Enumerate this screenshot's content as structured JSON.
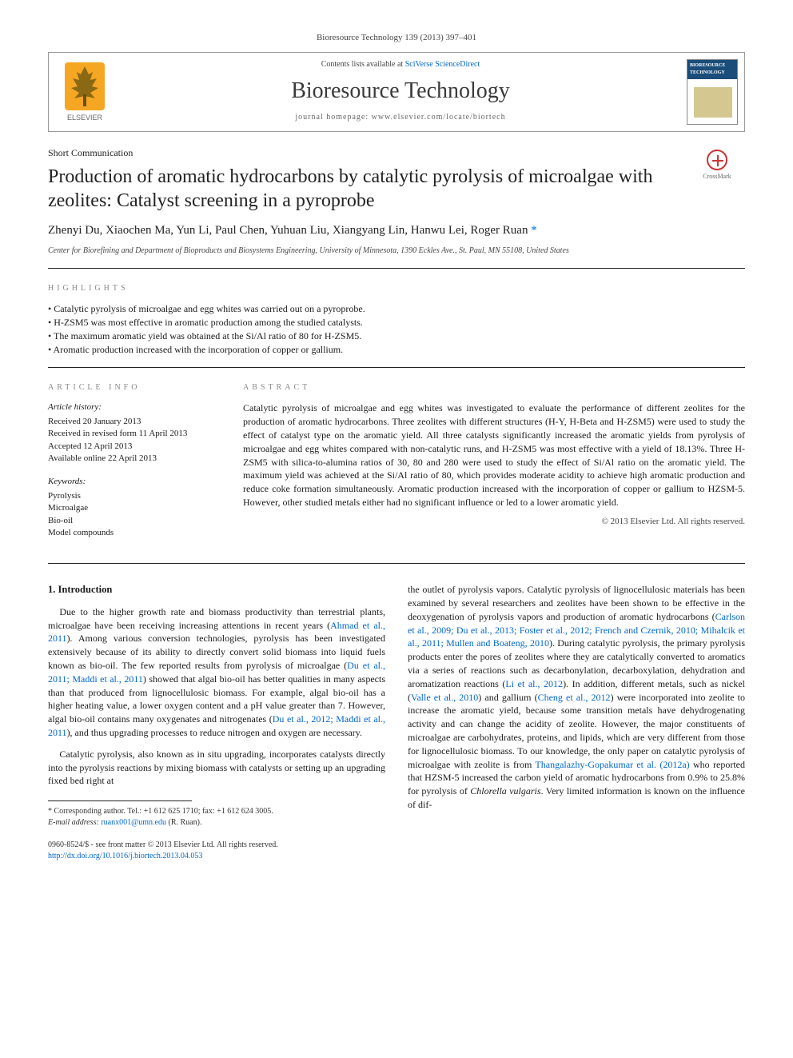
{
  "journal_ref": "Bioresource Technology 139 (2013) 397–401",
  "header": {
    "contents_prefix": "Contents lists available at ",
    "contents_link": "SciVerse ScienceDirect",
    "journal_title": "Bioresource Technology",
    "homepage_prefix": "journal homepage: ",
    "homepage": "www.elsevier.com/locate/biortech",
    "publisher": "ELSEVIER",
    "cover_title": "BIORESOURCE TECHNOLOGY"
  },
  "crossmark_label": "CrossMark",
  "article_type": "Short Communication",
  "title": "Production of aromatic hydrocarbons by catalytic pyrolysis of microalgae with zeolites: Catalyst screening in a pyroprobe",
  "authors": "Zhenyi Du, Xiaochen Ma, Yun Li, Paul Chen, Yuhuan Liu, Xiangyang Lin, Hanwu Lei, Roger Ruan",
  "corr_marker": "*",
  "affiliation": "Center for Biorefining and Department of Bioproducts and Biosystems Engineering, University of Minnesota, 1390 Eckles Ave., St. Paul, MN 55108, United States",
  "highlights_label": "HIGHLIGHTS",
  "highlights": [
    "Catalytic pyrolysis of microalgae and egg whites was carried out on a pyroprobe.",
    "H-ZSM5 was most effective in aromatic production among the studied catalysts.",
    "The maximum aromatic yield was obtained at the Si/Al ratio of 80 for H-ZSM5.",
    "Aromatic production increased with the incorporation of copper or gallium."
  ],
  "article_info_label": "ARTICLE INFO",
  "abstract_label": "ABSTRACT",
  "article_history_label": "Article history:",
  "article_history": [
    "Received 20 January 2013",
    "Received in revised form 11 April 2013",
    "Accepted 12 April 2013",
    "Available online 22 April 2013"
  ],
  "keywords_label": "Keywords:",
  "keywords": [
    "Pyrolysis",
    "Microalgae",
    "Bio-oil",
    "Model compounds"
  ],
  "abstract": "Catalytic pyrolysis of microalgae and egg whites was investigated to evaluate the performance of different zeolites for the production of aromatic hydrocarbons. Three zeolites with different structures (H-Y, H-Beta and H-ZSM5) were used to study the effect of catalyst type on the aromatic yield. All three catalysts significantly increased the aromatic yields from pyrolysis of microalgae and egg whites compared with non-catalytic runs, and H-ZSM5 was most effective with a yield of 18.13%. Three H-ZSM5 with silica-to-alumina ratios of 30, 80 and 280 were used to study the effect of Si/Al ratio on the aromatic yield. The maximum yield was achieved at the Si/Al ratio of 80, which provides moderate acidity to achieve high aromatic production and reduce coke formation simultaneously. Aromatic production increased with the incorporation of copper or gallium to HZSM-5. However, other studied metals either had no significant influence or led to a lower aromatic yield.",
  "abstract_copyright": "© 2013 Elsevier Ltd. All rights reserved.",
  "intro_heading": "1. Introduction",
  "intro_p1_a": "Due to the higher growth rate and biomass productivity than terrestrial plants, microalgae have been receiving increasing attentions in recent years (",
  "intro_p1_link1": "Ahmad et al., 2011",
  "intro_p1_b": "). Among various conversion technologies, pyrolysis has been investigated extensively because of its ability to directly convert solid biomass into liquid fuels known as bio-oil. The few reported results from pyrolysis of microalgae (",
  "intro_p1_link2": "Du et al., 2011; Maddi et al., 2011",
  "intro_p1_c": ") showed that algal bio-oil has better qualities in many aspects than that produced from lignocellulosic biomass. For example, algal bio-oil has a higher heating value, a lower oxygen content and a pH value greater than 7. However, algal bio-oil contains many oxygenates and nitrogenates (",
  "intro_p1_link3": "Du et al., 2012; Maddi et al., 2011",
  "intro_p1_d": "), and thus upgrading processes to reduce nitrogen and oxygen are necessary.",
  "intro_p2": "Catalytic pyrolysis, also known as in situ upgrading, incorporates catalysts directly into the pyrolysis reactions by mixing biomass with catalysts or setting up an upgrading fixed bed right at",
  "intro_p3_a": "the outlet of pyrolysis vapors. Catalytic pyrolysis of lignocellulosic materials has been examined by several researchers and zeolites have been shown to be effective in the deoxygenation of pyrolysis vapors and production of aromatic hydrocarbons (",
  "intro_p3_link1": "Carlson et al., 2009; Du et al., 2013; Foster et al., 2012; French and Czernik, 2010; Mihalcik et al., 2011; Mullen and Boateng, 2010",
  "intro_p3_b": "). During catalytic pyrolysis, the primary pyrolysis products enter the pores of zeolites where they are catalytically converted to aromatics via a series of reactions such as decarbonylation, decarboxylation, dehydration and aromatization reactions (",
  "intro_p3_link2": "Li et al., 2012",
  "intro_p3_c": "). In addition, different metals, such as nickel (",
  "intro_p3_link3": "Valle et al., 2010",
  "intro_p3_d": ") and gallium (",
  "intro_p3_link4": "Cheng et al., 2012",
  "intro_p3_e": ") were incorporated into zeolite to increase the aromatic yield, because some transition metals have dehydrogenating activity and can change the acidity of zeolite. However, the major constituents of microalgae are carbohydrates, proteins, and lipids, which are very different from those for lignocellulosic biomass. To our knowledge, the only paper on catalytic pyrolysis of microalgae with zeolite is from ",
  "intro_p3_link5": "Thangalazhy-Gopakumar et al. (2012a)",
  "intro_p3_f": " who reported that HZSM-5 increased the carbon yield of aromatic hydrocarbons from 0.9% to 25.8% for pyrolysis of ",
  "intro_p3_g": "Chlorella vulgaris",
  "intro_p3_h": ". Very limited information is known on the influence of dif-",
  "footnote_corr_label": "* Corresponding author. Tel.: +1 612 625 1710; fax: +1 612 624 3005.",
  "footnote_email_label": "E-mail address:",
  "footnote_email": "ruanx001@umn.edu",
  "footnote_email_name": "(R. Ruan).",
  "footer_issn": "0960-8524/$ - see front matter © 2013 Elsevier Ltd. All rights reserved.",
  "footer_doi": "http://dx.doi.org/10.1016/j.biortech.2013.04.053",
  "colors": {
    "link": "#0066cc",
    "text": "#1a1a1a",
    "muted": "#666666",
    "elsevier_orange": "#f5a623",
    "cover_blue": "#1a4d7a",
    "crossmark_red": "#c33333"
  },
  "typography": {
    "body_font": "Georgia, Times New Roman, serif",
    "title_fontsize": 24,
    "journal_title_fontsize": 28,
    "body_fontsize": 12,
    "small_fontsize": 10
  }
}
